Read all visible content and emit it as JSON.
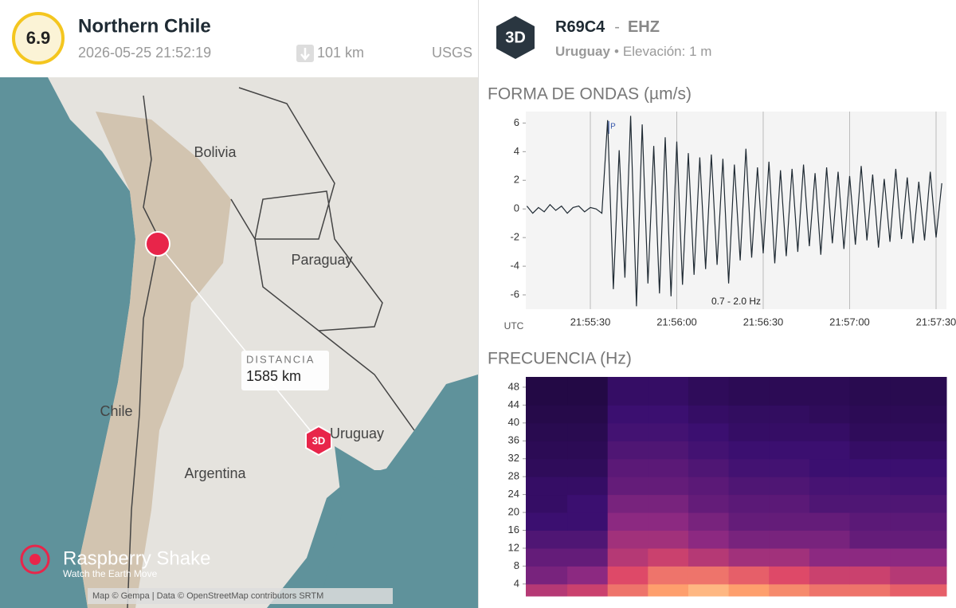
{
  "event": {
    "magnitude": "6.9",
    "region": "Northern Chile",
    "time": "2026-05-25 21:52:19",
    "depth": "101 km",
    "source": "USGS"
  },
  "map": {
    "labels": [
      "Bolivia",
      "Paraguay",
      "Chile",
      "Argentina",
      "Uruguay"
    ],
    "distance_label": "DISTANCIA",
    "distance": "1585 km",
    "station_badge": "3D",
    "logo": "Raspberry Shake",
    "tagline": "Watch the Earth Move",
    "attribution": "Map © Gempa | Data © OpenStreetMap contributors SRTM"
  },
  "station": {
    "badge": "3D",
    "code": "R69C4",
    "separator": "-",
    "channel": "EHZ",
    "location": "Uruguay",
    "bullet": "•",
    "elevation": "Elevación: 1 m"
  },
  "chart_data": [
    {
      "type": "line",
      "title": "FORMA DE ONDAS (µm/s)",
      "x_axis_label": "UTC",
      "annotation": "0.7 - 2.0 Hz",
      "phase_label": "P",
      "phase_x": 36.4,
      "color": "#1f2a33",
      "grid": "x",
      "x": [
        8,
        10,
        12,
        14,
        16,
        18,
        20,
        22,
        24,
        26,
        28,
        30,
        32,
        34,
        36,
        38,
        40,
        42,
        44,
        46,
        48,
        50,
        52,
        54,
        56,
        58,
        60,
        62,
        64,
        66,
        68,
        70,
        72,
        74,
        76,
        78,
        80,
        82,
        84,
        86,
        88,
        90,
        92,
        94,
        96,
        98,
        100,
        102,
        104,
        106,
        108,
        110,
        112,
        114,
        116,
        118,
        120,
        122,
        124,
        126,
        128,
        130,
        132,
        134,
        136,
        138,
        140,
        142,
        144,
        146,
        148,
        150,
        152
      ],
      "values": [
        0.2,
        -0.3,
        0.1,
        -0.2,
        0.3,
        -0.1,
        0.2,
        -0.3,
        0.1,
        0.2,
        -0.2,
        0.1,
        0.0,
        -0.3,
        6.2,
        -5.6,
        4.1,
        -4.8,
        6.5,
        -6.8,
        5.9,
        -5.2,
        4.4,
        -5.9,
        5.0,
        -6.1,
        4.7,
        -5.3,
        3.9,
        -4.6,
        3.6,
        -4.2,
        3.8,
        -3.9,
        3.5,
        -5.2,
        3.1,
        -3.6,
        4.2,
        -3.4,
        2.9,
        -3.1,
        3.3,
        -3.8,
        2.7,
        -3.3,
        2.8,
        -3.0,
        3.1,
        -2.6,
        2.5,
        -3.2,
        2.9,
        -2.4,
        2.6,
        -2.8,
        2.3,
        -2.5,
        3.0,
        -2.2,
        2.4,
        -2.7,
        2.1,
        -2.3,
        2.8,
        -2.1,
        2.2,
        -2.4,
        1.9,
        -2.2,
        2.6,
        -2.0,
        1.8
      ],
      "xlim": [
        7.6,
        153.6
      ],
      "xticks": [
        {
          "value": 30,
          "label": "21:55:30"
        },
        {
          "value": 60,
          "label": "21:56:00"
        },
        {
          "value": 90,
          "label": "21:56:30"
        },
        {
          "value": 120,
          "label": "21:57:00"
        },
        {
          "value": 150,
          "label": "21:57:30"
        }
      ],
      "ylim": [
        -7,
        6.8
      ],
      "yticks": [
        -6,
        -4,
        -2,
        0,
        2,
        4,
        6
      ]
    },
    {
      "type": "heatmap",
      "title": "FRECUENCIA (Hz)",
      "colormap": [
        "#000004",
        "#3b0f70",
        "#8c2981",
        "#de4968",
        "#fe9f6d",
        "#fcfdbf"
      ],
      "x_bins": [
        7.6,
        22,
        36,
        50,
        64,
        78,
        92,
        106,
        120,
        134,
        153.6
      ],
      "y_bins": [
        1.3,
        4,
        8,
        12,
        16,
        20,
        24,
        28,
        32,
        36,
        40,
        44,
        50.3
      ],
      "ylim": [
        1.3,
        50.3
      ],
      "yticks": [
        4,
        8,
        12,
        16,
        20,
        24,
        28,
        32,
        36,
        40,
        44,
        48
      ],
      "values": [
        [
          0.5,
          0.55,
          0.7,
          0.8,
          0.85,
          0.8,
          0.75,
          0.7,
          0.7,
          0.65
        ],
        [
          0.35,
          0.4,
          0.6,
          0.7,
          0.7,
          0.65,
          0.6,
          0.55,
          0.55,
          0.5
        ],
        [
          0.3,
          0.3,
          0.5,
          0.55,
          0.5,
          0.45,
          0.45,
          0.4,
          0.4,
          0.4
        ],
        [
          0.25,
          0.25,
          0.45,
          0.45,
          0.4,
          0.35,
          0.35,
          0.35,
          0.3,
          0.3
        ],
        [
          0.2,
          0.2,
          0.4,
          0.4,
          0.35,
          0.3,
          0.3,
          0.3,
          0.28,
          0.28
        ],
        [
          0.18,
          0.2,
          0.35,
          0.35,
          0.3,
          0.28,
          0.28,
          0.25,
          0.25,
          0.25
        ],
        [
          0.18,
          0.18,
          0.3,
          0.3,
          0.28,
          0.25,
          0.25,
          0.23,
          0.23,
          0.22
        ],
        [
          0.16,
          0.16,
          0.28,
          0.28,
          0.25,
          0.22,
          0.22,
          0.2,
          0.2,
          0.2
        ],
        [
          0.15,
          0.15,
          0.25,
          0.25,
          0.22,
          0.2,
          0.2,
          0.2,
          0.18,
          0.18
        ],
        [
          0.14,
          0.14,
          0.22,
          0.22,
          0.2,
          0.18,
          0.18,
          0.18,
          0.16,
          0.16
        ],
        [
          0.13,
          0.13,
          0.2,
          0.2,
          0.18,
          0.17,
          0.17,
          0.16,
          0.15,
          0.15
        ],
        [
          0.12,
          0.12,
          0.18,
          0.18,
          0.16,
          0.15,
          0.15,
          0.15,
          0.14,
          0.14
        ]
      ]
    }
  ]
}
